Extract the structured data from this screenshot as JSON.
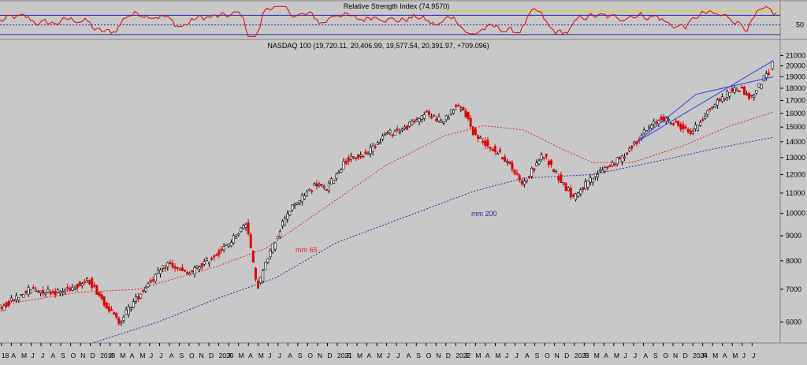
{
  "chart_data": {
    "type": "candlestick",
    "title": "NASDAQ 100 (19,720.11, 20,406.99, 19,577.54, 20,391.97, +709.096)",
    "colors": {
      "background": "#c8c8c8",
      "up": "#ffffff",
      "down": "#e00000",
      "outline": "#000000",
      "ma65": "#e02020",
      "ma200": "#3020a0",
      "channel": "#3040e0",
      "rsi": "#e00000",
      "rsi_bands": "#2020c0",
      "rsi_mid": "#2020c0",
      "rsi_ref": "#e0d020"
    },
    "y_scale": "log",
    "ylim": [
      5500,
      21500
    ],
    "y_ticks": [
      6000,
      7000,
      8000,
      9000,
      10000,
      11000,
      12000,
      13000,
      14000,
      15000,
      16000,
      17000,
      18000,
      19000,
      20000,
      21000
    ],
    "x_range": [
      "2018-01",
      "2024-07"
    ],
    "x_ticks": [
      "18",
      "A",
      "M",
      "J",
      "J",
      "A",
      "S",
      "O",
      "N",
      "D",
      "2019",
      "F",
      "M",
      "A",
      "M",
      "J",
      "J",
      "A",
      "S",
      "O",
      "N",
      "D",
      "2020",
      "F",
      "M",
      "A",
      "M",
      "J",
      "J",
      "A",
      "S",
      "O",
      "N",
      "D",
      "2021",
      "F",
      "M",
      "A",
      "M",
      "J",
      "J",
      "A",
      "S",
      "O",
      "N",
      "D",
      "2022",
      "F",
      "M",
      "A",
      "M",
      "J",
      "J",
      "A",
      "S",
      "O",
      "N",
      "D",
      "2023",
      "F",
      "M",
      "A",
      "M",
      "J",
      "J",
      "A",
      "S",
      "O",
      "N",
      "D",
      "2024",
      "F",
      "M",
      "A",
      "M",
      "J",
      "J"
    ],
    "price_key": [
      [
        0,
        6400
      ],
      [
        3,
        7000
      ],
      [
        6,
        6900
      ],
      [
        9,
        7300
      ],
      [
        11,
        6400
      ],
      [
        12,
        6000
      ],
      [
        15,
        7200
      ],
      [
        17,
        7900
      ],
      [
        19,
        7500
      ],
      [
        21,
        8000
      ],
      [
        23,
        8600
      ],
      [
        25,
        9600
      ],
      [
        26,
        7000
      ],
      [
        27,
        8000
      ],
      [
        29,
        10000
      ],
      [
        32,
        11500
      ],
      [
        33,
        11200
      ],
      [
        35,
        12800
      ],
      [
        37,
        13200
      ],
      [
        39,
        14500
      ],
      [
        41,
        14900
      ],
      [
        43,
        16000
      ],
      [
        45,
        15400
      ],
      [
        46,
        16500
      ],
      [
        47,
        16200
      ],
      [
        48,
        14500
      ],
      [
        49,
        14000
      ],
      [
        51,
        13000
      ],
      [
        53,
        11500
      ],
      [
        55,
        13200
      ],
      [
        57,
        11500
      ],
      [
        58,
        10800
      ],
      [
        60,
        11800
      ],
      [
        61,
        12300
      ],
      [
        63,
        13000
      ],
      [
        65,
        14500
      ],
      [
        67,
        15700
      ],
      [
        69,
        15000
      ],
      [
        70,
        14600
      ],
      [
        72,
        16500
      ],
      [
        74,
        17800
      ],
      [
        75,
        18000
      ],
      [
        76,
        17100
      ],
      [
        77,
        18400
      ],
      [
        78,
        19700
      ],
      [
        78.3,
        20392
      ]
    ],
    "ma65_key": [
      [
        0,
        6500
      ],
      [
        8,
        6900
      ],
      [
        14,
        7000
      ],
      [
        22,
        7800
      ],
      [
        27,
        8500
      ],
      [
        33,
        10300
      ],
      [
        39,
        12500
      ],
      [
        45,
        14400
      ],
      [
        49,
        15100
      ],
      [
        53,
        14800
      ],
      [
        57,
        13500
      ],
      [
        60,
        12700
      ],
      [
        64,
        12700
      ],
      [
        69,
        13700
      ],
      [
        74,
        15100
      ],
      [
        78.3,
        16100
      ]
    ],
    "ma200_key": [
      [
        9.5,
        5450
      ],
      [
        16,
        6000
      ],
      [
        22,
        6700
      ],
      [
        28,
        7400
      ],
      [
        34,
        8700
      ],
      [
        42,
        10000
      ],
      [
        48,
        11100
      ],
      [
        53,
        11800
      ],
      [
        60,
        12000
      ],
      [
        66,
        12700
      ],
      [
        72,
        13500
      ],
      [
        78.3,
        14300
      ]
    ],
    "rsi": {
      "title": "Relative Strength Index (74.9570)",
      "last": 74.957,
      "upper_band": 70,
      "mid_band": 50,
      "lower_band": 30,
      "ylim": [
        25,
        95
      ],
      "tick_label": "50"
    },
    "labels": {
      "ma65": "mm 65",
      "ma200": "mm 200"
    },
    "channel": {
      "upper": [
        [
          64.5,
          14000
        ],
        [
          78.3,
          20500
        ]
      ],
      "lower": [
        [
          70.5,
          17500
        ],
        [
          78.3,
          19000
        ]
      ]
    }
  }
}
